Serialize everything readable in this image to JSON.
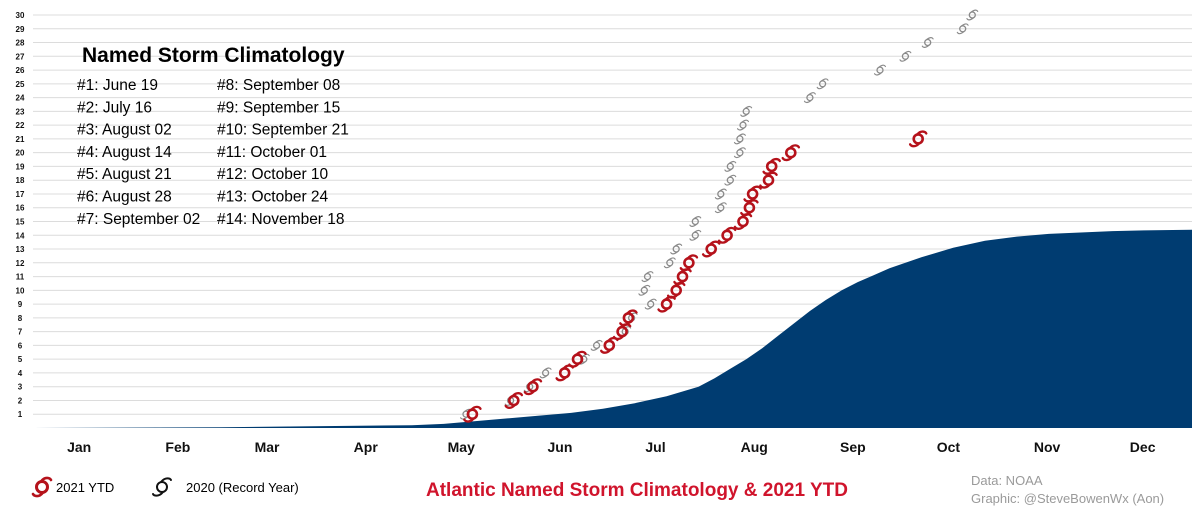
{
  "chart_data": {
    "type": "area",
    "title": "Atlantic Named Storm Climatology & 2021 YTD",
    "ylim": [
      0,
      30
    ],
    "yticks": [
      1,
      2,
      3,
      4,
      5,
      6,
      7,
      8,
      9,
      10,
      11,
      12,
      13,
      14,
      15,
      16,
      17,
      18,
      19,
      20,
      21,
      22,
      23,
      24,
      25,
      26,
      27,
      28,
      29,
      30
    ],
    "months": [
      "Jan",
      "Feb",
      "Mar",
      "Apr",
      "May",
      "Jun",
      "Jul",
      "Aug",
      "Sep",
      "Oct",
      "Nov",
      "Dec"
    ],
    "grid": true,
    "climatology": {
      "x_day": [
        1,
        60,
        120,
        130,
        140,
        150,
        160,
        170,
        180,
        190,
        200,
        210,
        215,
        220,
        225,
        230,
        235,
        240,
        245,
        250,
        255,
        260,
        265,
        270,
        280,
        290,
        300,
        310,
        320,
        330,
        340,
        350,
        365
      ],
      "y": [
        0,
        0.05,
        0.2,
        0.3,
        0.5,
        0.7,
        0.9,
        1.1,
        1.4,
        1.8,
        2.3,
        3.0,
        3.6,
        4.3,
        5.0,
        5.8,
        6.7,
        7.6,
        8.5,
        9.3,
        10.0,
        10.6,
        11.1,
        11.6,
        12.4,
        13.1,
        13.6,
        13.9,
        14.1,
        14.2,
        14.3,
        14.35,
        14.4
      ]
    },
    "named_storm_dates": {
      "title": "Named Storm Climatology",
      "items": [
        "#1: June 19",
        "#2: July 16",
        "#3: August 02",
        "#4: August 14",
        "#5: August 21",
        "#6: August 28",
        "#7: September 02",
        "#8: September 08",
        "#9: September 15",
        "#10: September 21",
        "#11: October 01",
        "#12: October 10",
        "#13: October 24",
        "#14: November 18"
      ]
    },
    "series": [
      {
        "name": "2021 YTD",
        "color": "#b5121b",
        "points": [
          [
            139,
            1
          ],
          [
            152,
            2
          ],
          [
            158,
            3
          ],
          [
            168,
            4
          ],
          [
            172,
            5
          ],
          [
            182,
            6
          ],
          [
            186,
            7
          ],
          [
            188,
            8
          ],
          [
            200,
            9
          ],
          [
            203,
            10
          ],
          [
            205,
            11
          ],
          [
            207,
            12
          ],
          [
            214,
            13
          ],
          [
            219,
            14
          ],
          [
            224,
            15
          ],
          [
            226,
            16
          ],
          [
            227,
            17
          ],
          [
            232,
            18
          ],
          [
            233,
            19
          ],
          [
            239,
            20
          ],
          [
            279,
            21
          ]
        ]
      },
      {
        "name": "2020 (Record Year)",
        "color": "#8a8a8a",
        "points": [
          [
            137,
            1
          ],
          [
            151,
            2
          ],
          [
            157,
            3
          ],
          [
            162,
            4
          ],
          [
            174,
            5
          ],
          [
            178,
            6
          ],
          [
            187,
            7
          ],
          [
            189,
            8
          ],
          [
            195,
            9
          ],
          [
            193,
            10
          ],
          [
            194,
            11
          ],
          [
            201,
            12
          ],
          [
            203,
            13
          ],
          [
            209,
            14
          ],
          [
            209,
            15
          ],
          [
            217,
            16
          ],
          [
            217,
            17
          ],
          [
            220,
            18
          ],
          [
            220,
            19
          ],
          [
            223,
            20
          ],
          [
            223,
            21
          ],
          [
            224,
            22
          ],
          [
            225,
            23
          ],
          [
            245,
            24
          ],
          [
            249,
            25
          ],
          [
            267,
            26
          ],
          [
            275,
            27
          ],
          [
            282,
            28
          ],
          [
            293,
            29
          ],
          [
            296,
            30
          ]
        ]
      }
    ]
  },
  "footer": {
    "data_source": "Data: NOAA",
    "graphic_credit": "Graphic: @SteveBowenWx (Aon)"
  },
  "colors": {
    "area": "#003c71",
    "grid": "#dcdcdc",
    "title_red": "#d0142c"
  }
}
